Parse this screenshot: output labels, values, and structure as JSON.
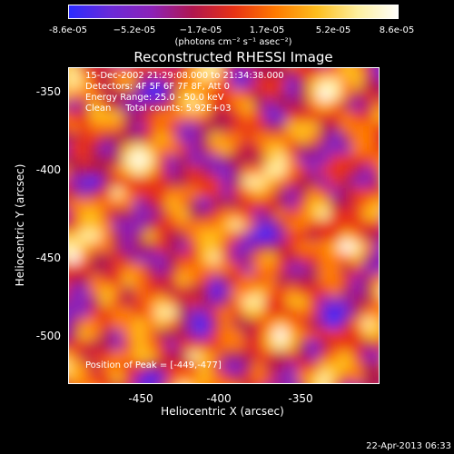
{
  "colorbar": {
    "ticks": [
      "-8.6e-05",
      "−5.2e-05",
      "−1.7e-05",
      "1.7e-05",
      "5.2e-05",
      "8.6e-05"
    ],
    "units": "(photons cm⁻² s⁻¹ asec⁻²)",
    "colors": [
      "#2b2bff",
      "#6a2ad8",
      "#8c22b8",
      "#b0164e",
      "#e83214",
      "#ff7a00",
      "#ffbe1e",
      "#fff0a0",
      "#ffffff"
    ]
  },
  "chart_data": {
    "type": "heatmap",
    "title": "Reconstructed RHESSI Image",
    "xlabel": "Heliocentric X (arcsec)",
    "ylabel": "Heliocentric Y (arcsec)",
    "xlim": [
      -500,
      -300
    ],
    "ylim": [
      -530,
      -330
    ],
    "x_ticks": [
      "-450",
      "-400",
      "-350"
    ],
    "y_ticks": [
      "-350",
      "-400",
      "-450",
      "-500"
    ],
    "info_lines": [
      "15-Dec-2002 21:29:08.000 to 21:34:38.000",
      "Detectors: 4F 5F 6F 7F 8F, Att 0",
      "Energy Range: 25.0 - 50.0 keV",
      "Clean     Total counts: 5.92E+03"
    ],
    "peak_label": "Position of Peak = [-449,-477]",
    "peak": [
      -449,
      -477
    ],
    "value_range": [
      -8.6e-05,
      8.6e-05
    ]
  },
  "timestamp": "22-Apr-2013 06:33"
}
